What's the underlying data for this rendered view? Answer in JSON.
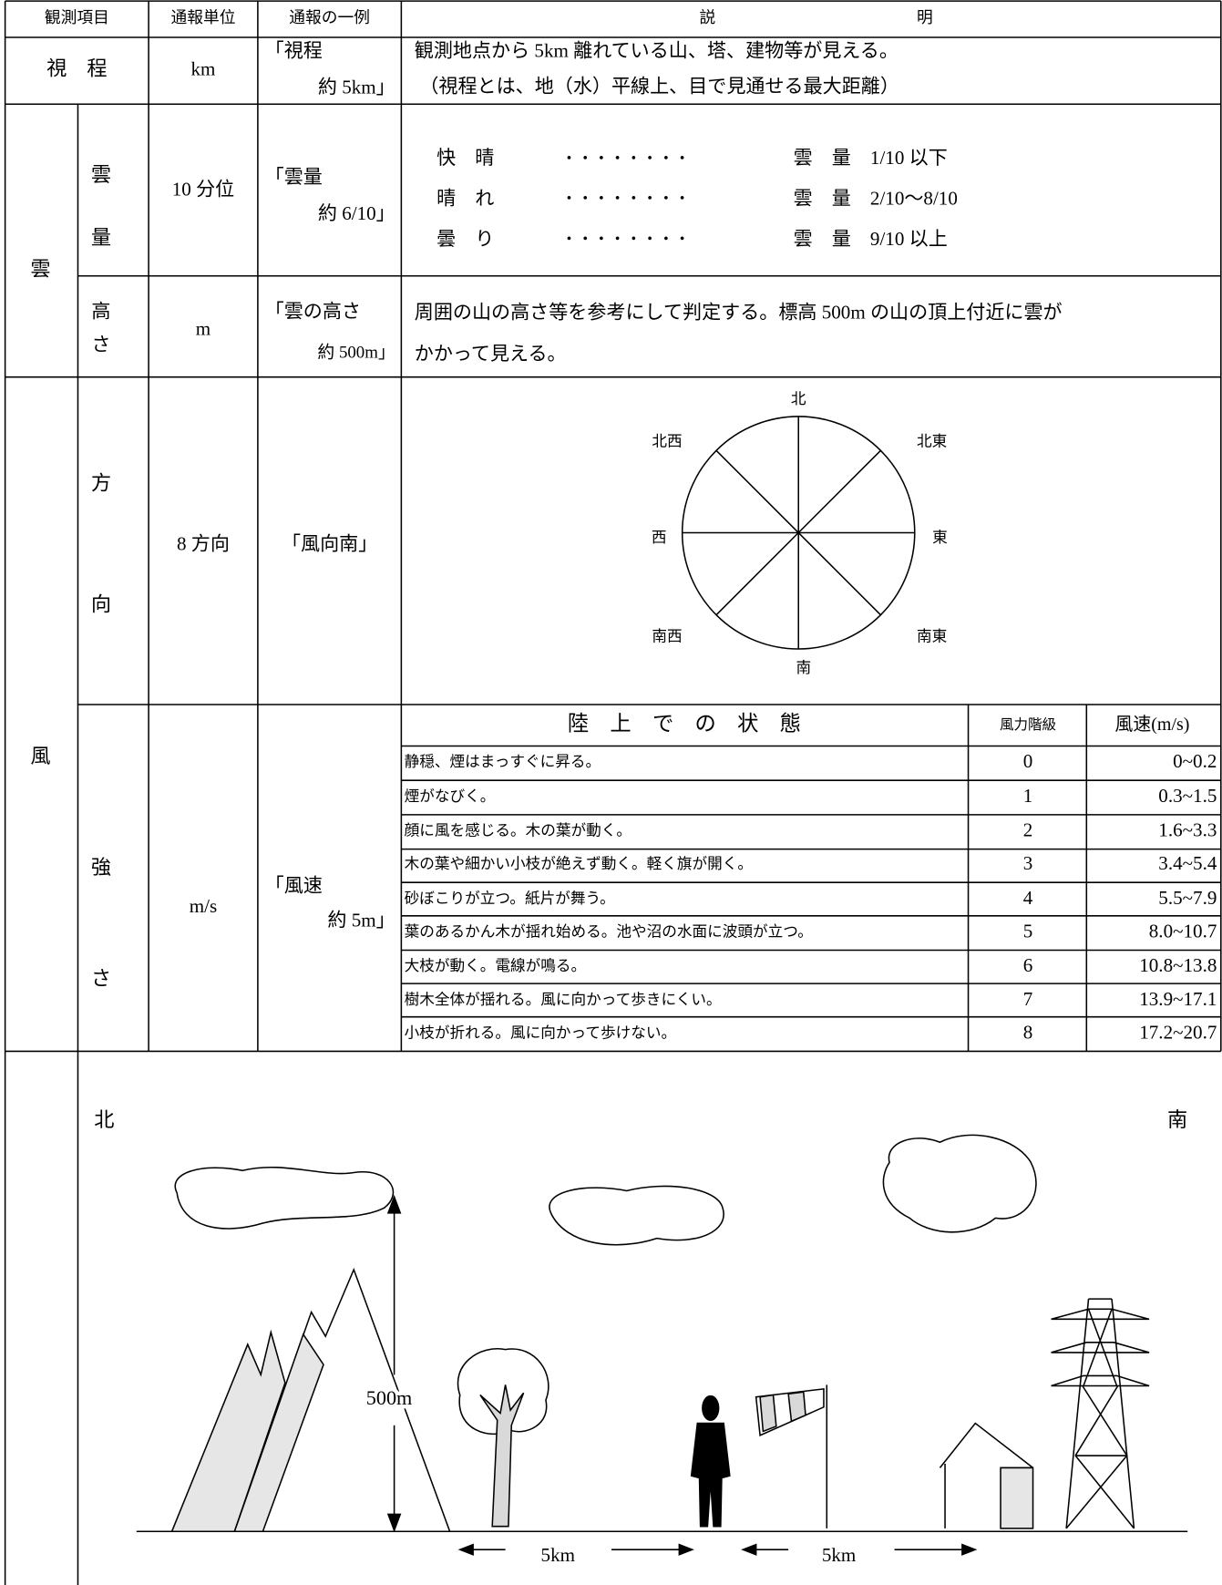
{
  "header": {
    "item": "観測項目",
    "unit": "通報単位",
    "example": "通報の一例",
    "description": [
      "説",
      "明"
    ]
  },
  "visibility": {
    "item": "視　程",
    "unit": "km",
    "example": [
      "「視程",
      "約 5km」"
    ],
    "description": [
      "観測地点から 5km 離れている山、塔、建物等が見える。",
      "（視程とは、地（水）平線上、目で見通せる最大距離）"
    ]
  },
  "cloud": {
    "group": "雲",
    "amount": {
      "item": [
        "雲",
        "量"
      ],
      "unit": "10 分位",
      "example": [
        "「雲量",
        "約 6/10」"
      ],
      "scale": [
        {
          "state": "快　晴",
          "leader": "・・・・・・・・",
          "amount": "雲　量　1/10 以下"
        },
        {
          "state": "晴　れ",
          "leader": "・・・・・・・・",
          "amount": "雲　量　2/10〜8/10"
        },
        {
          "state": "曇　り",
          "leader": "・・・・・・・・",
          "amount": "雲　量　9/10 以上"
        }
      ]
    },
    "height": {
      "item": [
        "高",
        "さ"
      ],
      "unit": "m",
      "example": [
        "「雲の高さ",
        "約 500m」"
      ],
      "description": [
        "周囲の山の高さ等を参考にして判定する。標高 500m の山の頂上付近に雲が",
        "かかって見える。"
      ]
    }
  },
  "wind": {
    "group": "風",
    "direction": {
      "item": [
        "方",
        "向"
      ],
      "unit": "8 方向",
      "example": "「風向南」",
      "compass": [
        "北",
        "北東",
        "東",
        "南東",
        "南",
        "南西",
        "西",
        "北西"
      ]
    },
    "strength": {
      "item": [
        "強",
        "さ"
      ],
      "unit": "m/s",
      "example": [
        "「風速",
        "約 5m」"
      ],
      "columns": [
        "陸　上　で　の　状　態",
        "風力階級",
        "風速(m/s)"
      ],
      "rows": [
        [
          "静穏、煙はまっすぐに昇る。",
          0,
          "0~0.2"
        ],
        [
          "煙がなびく。",
          1,
          "0.3~1.5"
        ],
        [
          "顔に風を感じる。木の葉が動く。",
          2,
          "1.6~3.3"
        ],
        [
          "木の葉や細かい小枝が絶えず動く。軽く旗が開く。",
          3,
          "3.4~5.4"
        ],
        [
          "砂ぼこりが立つ。紙片が舞う。",
          4,
          "5.5~7.9"
        ],
        [
          "葉のあるかん木が揺れ始める。池や沼の水面に波頭が立つ。",
          5,
          "8.0~10.7"
        ],
        [
          "大枝が動く。電線が鳴る。",
          6,
          "10.8~13.8"
        ],
        [
          "樹木全体が揺れる。風に向かって歩きにくい。",
          7,
          "13.9~17.1"
        ],
        [
          "小枝が折れる。風に向かって歩けない。",
          8,
          "17.2~20.7"
        ]
      ]
    }
  },
  "illustration": {
    "north": "北",
    "south": "南",
    "height": "500m",
    "distances": [
      "5km",
      "5km"
    ]
  }
}
